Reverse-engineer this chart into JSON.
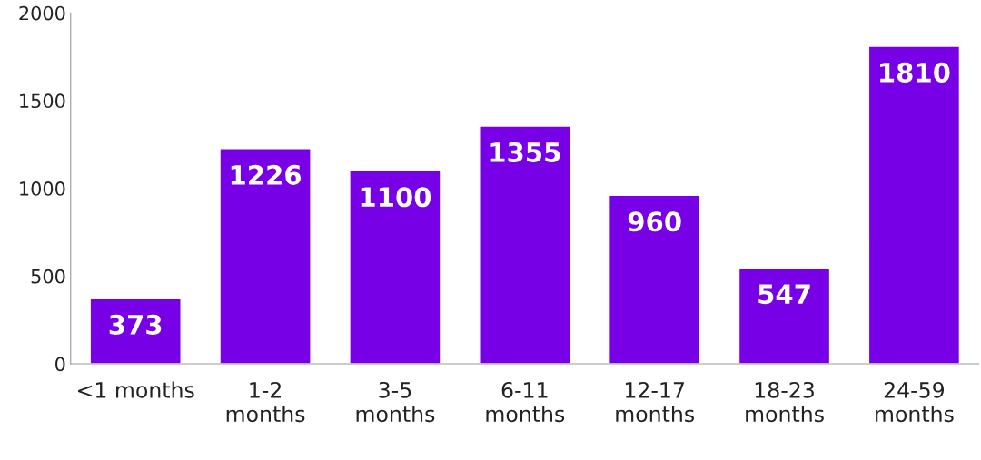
{
  "chart_data": {
    "type": "bar",
    "categories": [
      "<1 months",
      "1-2\nmonths",
      "3-5\nmonths",
      "6-11\nmonths",
      "12-17\nmonths",
      "18-23\nmonths",
      "24-59\nmonths"
    ],
    "values": [
      373,
      1226,
      1100,
      1355,
      960,
      547,
      1810
    ],
    "color": "#7800e6",
    "ylim": [
      0,
      2000
    ],
    "yticks": [
      0,
      500,
      1000,
      1500,
      2000
    ],
    "data_labels": true,
    "grid": false
  }
}
